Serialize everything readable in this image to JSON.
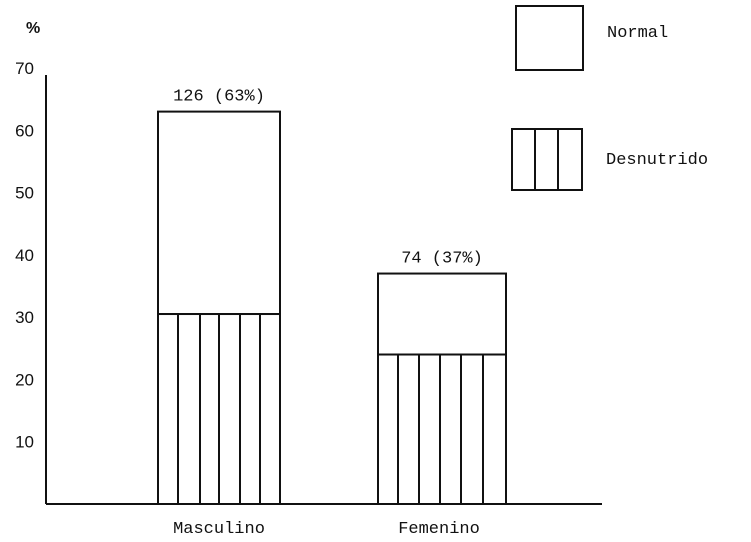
{
  "chart_data": {
    "type": "bar",
    "stacked": true,
    "ylabel": "%",
    "ylim": [
      0,
      70
    ],
    "y_ticks": [
      10,
      20,
      30,
      40,
      50,
      60,
      70
    ],
    "grid": false,
    "legend_placement": "top-right",
    "categories": [
      "Masculino",
      "Femenino"
    ],
    "series": [
      {
        "name": "Desnutrido",
        "pattern": "vertical-stripes",
        "values": [
          30.5,
          24.0
        ]
      },
      {
        "name": "Normal",
        "pattern": "plain",
        "values": [
          32.5,
          13.0
        ]
      }
    ],
    "bar_labels": [
      "126 (63%)",
      "74 (37%)"
    ]
  }
}
